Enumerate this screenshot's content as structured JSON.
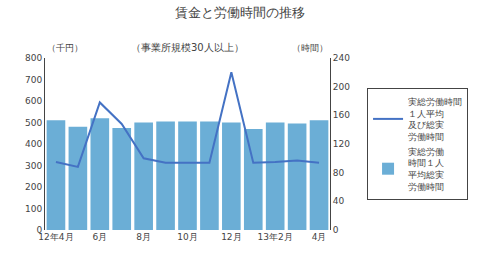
{
  "chart_data": {
    "type": "bar",
    "title": "賃金と労働時間の推移",
    "subtitle": "（事業所規模30人以上）",
    "ylabel": "（千円）",
    "y2label": "（時間）",
    "categories": [
      "12年4月",
      null,
      "6月",
      null,
      "8月",
      null,
      "10月",
      null,
      "12月",
      null,
      "13年2月",
      null,
      "4月"
    ],
    "series": [
      {
        "name": "実総労働\n時間１人\n平均総実\n労働時間",
        "type": "bar",
        "color": "#6baed6",
        "values": [
          510,
          480,
          520,
          475,
          500,
          505,
          505,
          505,
          500,
          470,
          500,
          495,
          510
        ]
      },
      {
        "name": "実総労働時間\n１人平均\n及び総実\n労働時間",
        "type": "line",
        "color": "#4472c4",
        "axis": "y2",
        "values": [
          95,
          88,
          178,
          148,
          100,
          94,
          94,
          94,
          220,
          94,
          95,
          97,
          94
        ]
      }
    ],
    "ylim": [
      0,
      800
    ],
    "yticks": [
      0,
      100,
      200,
      300,
      400,
      500,
      600,
      700,
      800
    ],
    "y2lim": [
      0,
      240
    ],
    "y2ticks": [
      0,
      40,
      80,
      120,
      160,
      200,
      240
    ],
    "grid": false,
    "legend": "right"
  }
}
